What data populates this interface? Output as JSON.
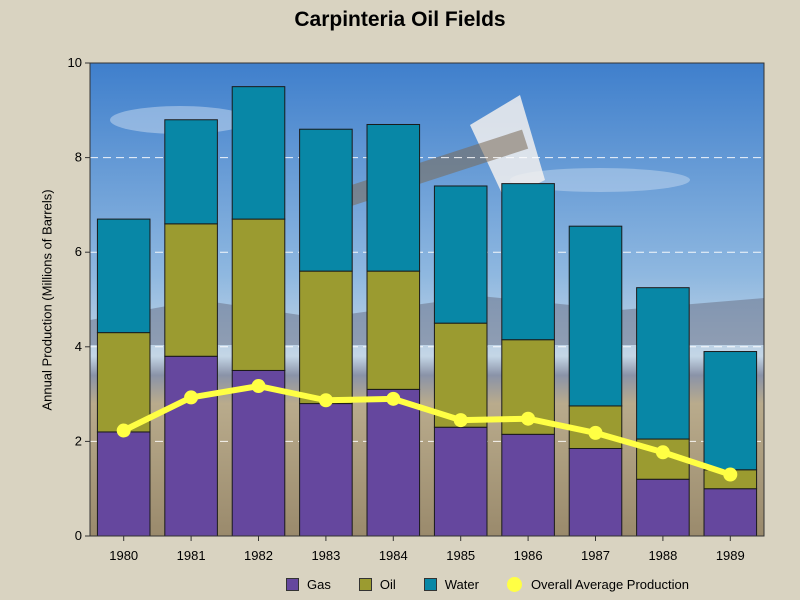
{
  "chart_data": {
    "type": "bar",
    "stacked": true,
    "title": "Carpinteria Oil Fields",
    "xlabel": "",
    "ylabel": "Annual Production (Millions of Barrels)",
    "ylim": [
      0,
      10
    ],
    "yticks": [
      0,
      2,
      4,
      6,
      8,
      10
    ],
    "categories": [
      "1980",
      "1981",
      "1982",
      "1983",
      "1984",
      "1985",
      "1986",
      "1987",
      "1988",
      "1989"
    ],
    "series": [
      {
        "name": "Gas",
        "color": "#65479e",
        "values": [
          2.2,
          3.8,
          3.5,
          2.8,
          3.1,
          2.3,
          2.15,
          1.85,
          1.2,
          1.0
        ]
      },
      {
        "name": "Oil",
        "color": "#9b9b30",
        "values": [
          2.1,
          2.8,
          3.2,
          2.8,
          2.5,
          2.2,
          2.0,
          0.9,
          0.85,
          0.4
        ]
      },
      {
        "name": "Water",
        "color": "#0887a6",
        "values": [
          2.4,
          2.2,
          2.8,
          3.0,
          3.1,
          2.9,
          3.3,
          3.8,
          3.2,
          2.5
        ]
      }
    ],
    "line": {
      "name": "Overall Average Production",
      "color": "#ffff44",
      "values": [
        2.23,
        2.93,
        3.17,
        2.87,
        2.9,
        2.45,
        2.48,
        2.18,
        1.77,
        1.3
      ]
    },
    "grid": true
  }
}
